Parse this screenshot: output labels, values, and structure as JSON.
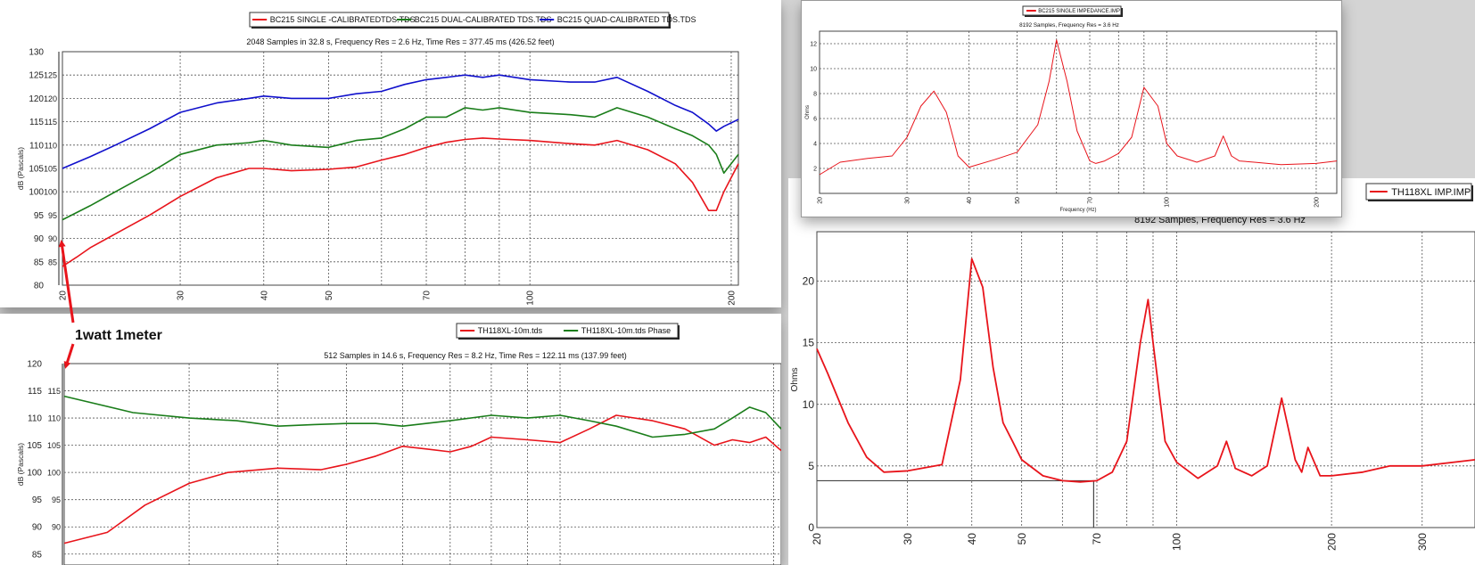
{
  "chart_data": [
    {
      "type": "line",
      "legend_location": "top",
      "title": "2048 Samples in 32.8 s, Frequency Res = 2.6 Hz, Time Res = 377.45 ms (426.52 feet)",
      "ylabel": "dB (Pascals)",
      "xscale": "log",
      "xlim": [
        20,
        205
      ],
      "ylim": [
        80,
        130
      ],
      "yticks": [
        80,
        85,
        90,
        95,
        100,
        105,
        110,
        115,
        120,
        125,
        130
      ],
      "inner_yticks": [
        85,
        90,
        95,
        100,
        105,
        110,
        115,
        120,
        125
      ],
      "xticks": [
        20,
        30,
        40,
        50,
        70,
        100,
        200
      ],
      "grid": true,
      "series": [
        {
          "name": "BC215 SINGLE -CALIBRATEDTDS.TDS",
          "color": "#e8141b",
          "x": [
            20,
            21,
            22,
            24,
            27,
            30,
            34,
            38,
            40,
            44,
            50,
            55,
            60,
            65,
            70,
            75,
            80,
            85,
            90,
            100,
            115,
            125,
            135,
            150,
            165,
            175,
            185,
            190,
            195,
            205
          ],
          "y": [
            84,
            86,
            88,
            91,
            95,
            99,
            103,
            105,
            105,
            104.5,
            104.8,
            105.3,
            106.8,
            108,
            109.5,
            110.6,
            111.2,
            111.5,
            111.3,
            111,
            110.3,
            110,
            111,
            109,
            106,
            102,
            96,
            96,
            100,
            106
          ]
        },
        {
          "name": "BC215 DUAL-CALIBRATED TDS.TDS",
          "color": "#1a7d1a",
          "x": [
            20,
            22,
            24,
            27,
            30,
            34,
            38,
            40,
            44,
            50,
            55,
            60,
            65,
            70,
            75,
            80,
            85,
            90,
            100,
            115,
            125,
            135,
            150,
            165,
            175,
            185,
            190,
            195,
            205
          ],
          "y": [
            94,
            97,
            100,
            104,
            108,
            110,
            110.5,
            111,
            110,
            109.5,
            111,
            111.5,
            113.5,
            116,
            116,
            118,
            117.5,
            118,
            117,
            116.5,
            116,
            118,
            116,
            113.5,
            112,
            110,
            108,
            104,
            108
          ]
        },
        {
          "name": "BC215 QUAD-CALIBRATED TDS.TDS",
          "color": "#1010cc",
          "x": [
            20,
            22,
            24,
            27,
            30,
            34,
            38,
            40,
            44,
            50,
            55,
            60,
            65,
            70,
            75,
            80,
            85,
            90,
            100,
            115,
            125,
            135,
            150,
            165,
            175,
            185,
            190,
            195,
            205
          ],
          "y": [
            105,
            107.5,
            110,
            113.5,
            117,
            119,
            120,
            120.5,
            120,
            120,
            121,
            121.5,
            123,
            124,
            124.5,
            125,
            124.5,
            125,
            124,
            123.5,
            123.5,
            124.5,
            121.5,
            118.5,
            117,
            114.5,
            113,
            114,
            115.5
          ]
        }
      ]
    },
    {
      "type": "line",
      "legend_location": "top",
      "title": "512 Samples in 14.6 s, Frequency Res = 8.2 Hz, Time Res = 122.11 ms (137.99 feet)",
      "ylabel": "dB (Pascals)",
      "xscale": "log",
      "xlim": [
        20,
        205
      ],
      "ylim": [
        83,
        120
      ],
      "yticks": [
        85,
        90,
        95,
        100,
        105,
        110,
        115,
        120
      ],
      "inner_yticks": [
        90,
        95,
        100,
        105,
        110,
        115
      ],
      "xticks": [],
      "grid": true,
      "series": [
        {
          "name": "TH118XL-10m.tds",
          "color": "#e8141b",
          "x": [
            20,
            23,
            26,
            30,
            34,
            40,
            46,
            50,
            55,
            60,
            65,
            70,
            75,
            80,
            90,
            100,
            110,
            120,
            135,
            150,
            165,
            175,
            185,
            195,
            205
          ],
          "y": [
            87,
            89,
            94,
            98,
            100,
            100.8,
            100.5,
            101.5,
            103,
            104.8,
            104.3,
            103.8,
            104.8,
            106.5,
            106,
            105.5,
            108,
            110.5,
            109.5,
            108,
            105,
            106,
            105.5,
            106.5,
            104
          ]
        },
        {
          "name": "TH118XL-10m.tds Phase",
          "color": "#1a7d1a",
          "x": [
            20,
            25,
            30,
            35,
            40,
            45,
            50,
            55,
            60,
            70,
            80,
            90,
            100,
            110,
            120,
            135,
            150,
            165,
            175,
            185,
            195,
            205
          ],
          "y": [
            114,
            111,
            110,
            109.5,
            108.5,
            108.8,
            109,
            109,
            108.5,
            109.5,
            110.5,
            110,
            110.5,
            109.5,
            108.5,
            106.5,
            107,
            108,
            110,
            112,
            111,
            108
          ]
        }
      ]
    },
    {
      "type": "line",
      "legend_location": "top-left",
      "title": "8192 Samples, Frequency Res = 3.6 Hz",
      "ylabel": "Ohms",
      "xlabel": "Frequency (Hz)",
      "xscale": "log",
      "xlim": [
        20,
        220
      ],
      "ylim": [
        0,
        13
      ],
      "yticks": [
        2,
        4,
        6,
        8,
        10,
        12
      ],
      "xticks": [
        20,
        30,
        40,
        50,
        70,
        100,
        200
      ],
      "grid": true,
      "series": [
        {
          "name": "BC215 SINGLE IMPEDANCE.IMP",
          "color": "#e8141b",
          "x": [
            20,
            22,
            25,
            28,
            30,
            32,
            34,
            36,
            38,
            40,
            45,
            50,
            55,
            58,
            60,
            63,
            66,
            70,
            72,
            75,
            80,
            85,
            90,
            96,
            100,
            105,
            115,
            125,
            130,
            135,
            140,
            150,
            170,
            200,
            220
          ],
          "y": [
            1.5,
            2.5,
            2.8,
            3.0,
            4.5,
            7,
            8.2,
            6.5,
            3,
            2.1,
            2.7,
            3.3,
            5.5,
            9,
            12.3,
            9,
            5,
            2.6,
            2.4,
            2.6,
            3.2,
            4.5,
            8.5,
            7,
            4,
            3.0,
            2.5,
            3.0,
            4.6,
            3.0,
            2.6,
            2.5,
            2.3,
            2.4,
            2.6
          ]
        }
      ]
    },
    {
      "type": "line",
      "legend_location": "top-right",
      "title": "8192 Samples, Frequency Res = 3.6 Hz",
      "ylabel": "Ohms",
      "xscale": "log",
      "xlim": [
        20,
        380
      ],
      "ylim": [
        0,
        24
      ],
      "yticks": [
        0,
        5,
        10,
        15,
        20
      ],
      "xticks": [
        20,
        30,
        40,
        50,
        70,
        100,
        200,
        300
      ],
      "grid": true,
      "reference_line": {
        "x": 69,
        "y": 3.8
      },
      "series": [
        {
          "name": "TH118XL IMP.IMP",
          "color": "#e8141b",
          "x": [
            20,
            21,
            23,
            25,
            27,
            30,
            35,
            38,
            40,
            42,
            44,
            46,
            48,
            50,
            55,
            60,
            65,
            70,
            75,
            80,
            85,
            88,
            90,
            95,
            100,
            110,
            120,
            125,
            130,
            140,
            150,
            160,
            170,
            175,
            180,
            190,
            200,
            230,
            260,
            300,
            380
          ],
          "y": [
            14.5,
            12.5,
            8.5,
            5.7,
            4.5,
            4.6,
            5.1,
            12,
            21.8,
            19.5,
            13,
            8.5,
            7.0,
            5.5,
            4.2,
            3.8,
            3.7,
            3.8,
            4.5,
            7,
            15,
            18.5,
            15,
            7,
            5.3,
            4.0,
            5.0,
            7.0,
            4.8,
            4.2,
            5.0,
            10.5,
            5.5,
            4.5,
            6.5,
            4.2,
            4.2,
            4.5,
            5.0,
            5.0,
            5.5
          ]
        }
      ]
    }
  ],
  "annotation": {
    "text": "1watt 1meter"
  },
  "colors": {
    "arrow": "#e8141b",
    "grid": "#555555"
  }
}
